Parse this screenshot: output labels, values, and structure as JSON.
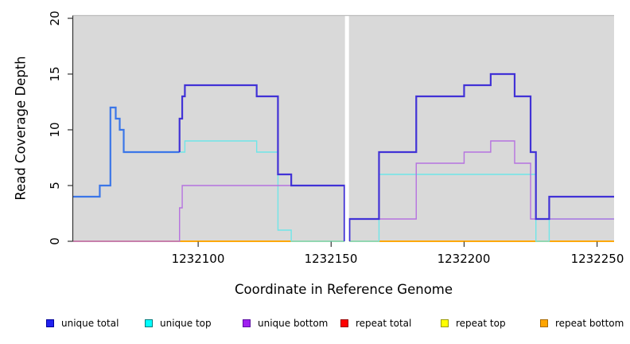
{
  "figure": {
    "y_axis": {
      "title": "Read Coverage Depth",
      "tick_labels": [
        "0",
        "5",
        "10",
        "15",
        "20"
      ],
      "tick_values": [
        0,
        5,
        10,
        15,
        20
      ]
    },
    "x_axis": {
      "title": "Coordinate in Reference Genome",
      "tick_labels": [
        "1232100",
        "1232150",
        "1232200",
        "1232250"
      ],
      "tick_values": [
        1232100,
        1232150,
        1232200,
        1232250
      ]
    },
    "legend": [
      {
        "label": "unique total",
        "fill": "#2121F0",
        "border": "#000099"
      },
      {
        "label": "unique top",
        "fill": "#00FFFF",
        "border": "#007A7A"
      },
      {
        "label": "unique bottom",
        "fill": "#A020F0",
        "border": "#5C0DA3"
      },
      {
        "label": "repeat total",
        "fill": "#FF0000",
        "border": "#990000"
      },
      {
        "label": "repeat top",
        "fill": "#FFFF00",
        "border": "#9A9A00"
      },
      {
        "label": "repeat bottom",
        "fill": "#FFA500",
        "border": "#A86A00"
      }
    ]
  },
  "chart_data": {
    "type": "line",
    "subtype": "step-coverage",
    "title": "",
    "xlabel": "Coordinate in Reference Genome",
    "ylabel": "Read Coverage Depth",
    "xlim": [
      1232053.0,
      1232256.4
    ],
    "ylim": [
      0,
      20.3
    ],
    "grid": false,
    "plot_bg": "#D9D9D9",
    "gap_no_data": [
      1232155.2,
      1232156.7
    ],
    "draw_order": [
      "repeat_total",
      "repeat_top",
      "repeat_bottom",
      "unique_top",
      "unique_bottom",
      "unique_total"
    ],
    "series": {
      "unique_total": {
        "name": "unique total",
        "color_light_when_equals_top": "#3B76E8",
        "color_dark": "#4132D6",
        "width": 2.2,
        "segments": [
          {
            "points": [
              [
                1232053,
                4
              ],
              [
                1232063,
                5
              ],
              [
                1232067,
                12
              ],
              [
                1232069,
                11
              ],
              [
                1232070.5,
                10
              ],
              [
                1232072,
                8
              ],
              [
                1232093,
                11
              ],
              [
                1232094,
                13
              ],
              [
                1232095,
                14
              ],
              [
                1232122,
                13
              ],
              [
                1232130,
                6
              ],
              [
                1232135,
                5
              ]
            ],
            "end": 1232155,
            "rise": false,
            "drop": true
          },
          {
            "points": [
              [
                1232156.9,
                2
              ],
              [
                1232168,
                8
              ],
              [
                1232182,
                13
              ],
              [
                1232200,
                14
              ],
              [
                1232210,
                15
              ],
              [
                1232219,
                13
              ],
              [
                1232225,
                8
              ],
              [
                1232227,
                2
              ],
              [
                1232232,
                4
              ]
            ],
            "end": 1232256.4,
            "rise": true,
            "drop": false
          }
        ]
      },
      "unique_top": {
        "name": "unique top",
        "color": "#6FE6E8",
        "width": 1.4,
        "segments": [
          {
            "points": [
              [
                1232053,
                4
              ],
              [
                1232063,
                5
              ],
              [
                1232067,
                12
              ],
              [
                1232069,
                11
              ],
              [
                1232070.5,
                10
              ],
              [
                1232072,
                8
              ],
              [
                1232095,
                9
              ],
              [
                1232122,
                8
              ],
              [
                1232130,
                1
              ],
              [
                1232135,
                0
              ]
            ],
            "end": 1232155,
            "rise": false,
            "drop": false
          },
          {
            "points": [
              [
                1232156.9,
                0
              ],
              [
                1232168,
                6
              ],
              [
                1232227,
                0
              ],
              [
                1232232,
                2
              ]
            ],
            "end": 1232256.4,
            "rise": false,
            "drop": false
          }
        ]
      },
      "unique_bottom": {
        "name": "unique bottom",
        "color": "#B672DF",
        "width": 1.4,
        "segments": [
          {
            "points": [
              [
                1232053,
                0
              ],
              [
                1232093,
                3
              ],
              [
                1232094,
                5
              ]
            ],
            "end": 1232155,
            "rise": false,
            "drop": true
          },
          {
            "points": [
              [
                1232156.9,
                2
              ],
              [
                1232182,
                7
              ],
              [
                1232200,
                8
              ],
              [
                1232210,
                9
              ],
              [
                1232219,
                7
              ],
              [
                1232225,
                2
              ]
            ],
            "end": 1232256.4,
            "rise": true,
            "drop": false
          }
        ]
      },
      "repeat_total": {
        "name": "repeat total",
        "color": "#E22222",
        "width": 1.4,
        "segments": [
          {
            "points": [
              [
                1232053,
                0
              ]
            ],
            "end": 1232155,
            "rise": false,
            "drop": false
          },
          {
            "points": [
              [
                1232156.9,
                0
              ]
            ],
            "end": 1232256.4,
            "rise": false,
            "drop": false
          }
        ]
      },
      "repeat_top": {
        "name": "repeat top",
        "color": "#FFFF00",
        "width": 1.4,
        "segments": [
          {
            "points": [
              [
                1232053,
                0
              ]
            ],
            "end": 1232155,
            "rise": false,
            "drop": false
          },
          {
            "points": [
              [
                1232156.9,
                0
              ]
            ],
            "end": 1232256.4,
            "rise": false,
            "drop": false
          }
        ]
      },
      "repeat_bottom": {
        "name": "repeat bottom",
        "color": "#FFA500",
        "width": 1.8,
        "segments": [
          {
            "points": [
              [
                1232053,
                0
              ]
            ],
            "end": 1232155,
            "rise": false,
            "drop": false
          },
          {
            "points": [
              [
                1232156.9,
                0
              ]
            ],
            "end": 1232256.4,
            "rise": false,
            "drop": false
          }
        ]
      }
    }
  }
}
